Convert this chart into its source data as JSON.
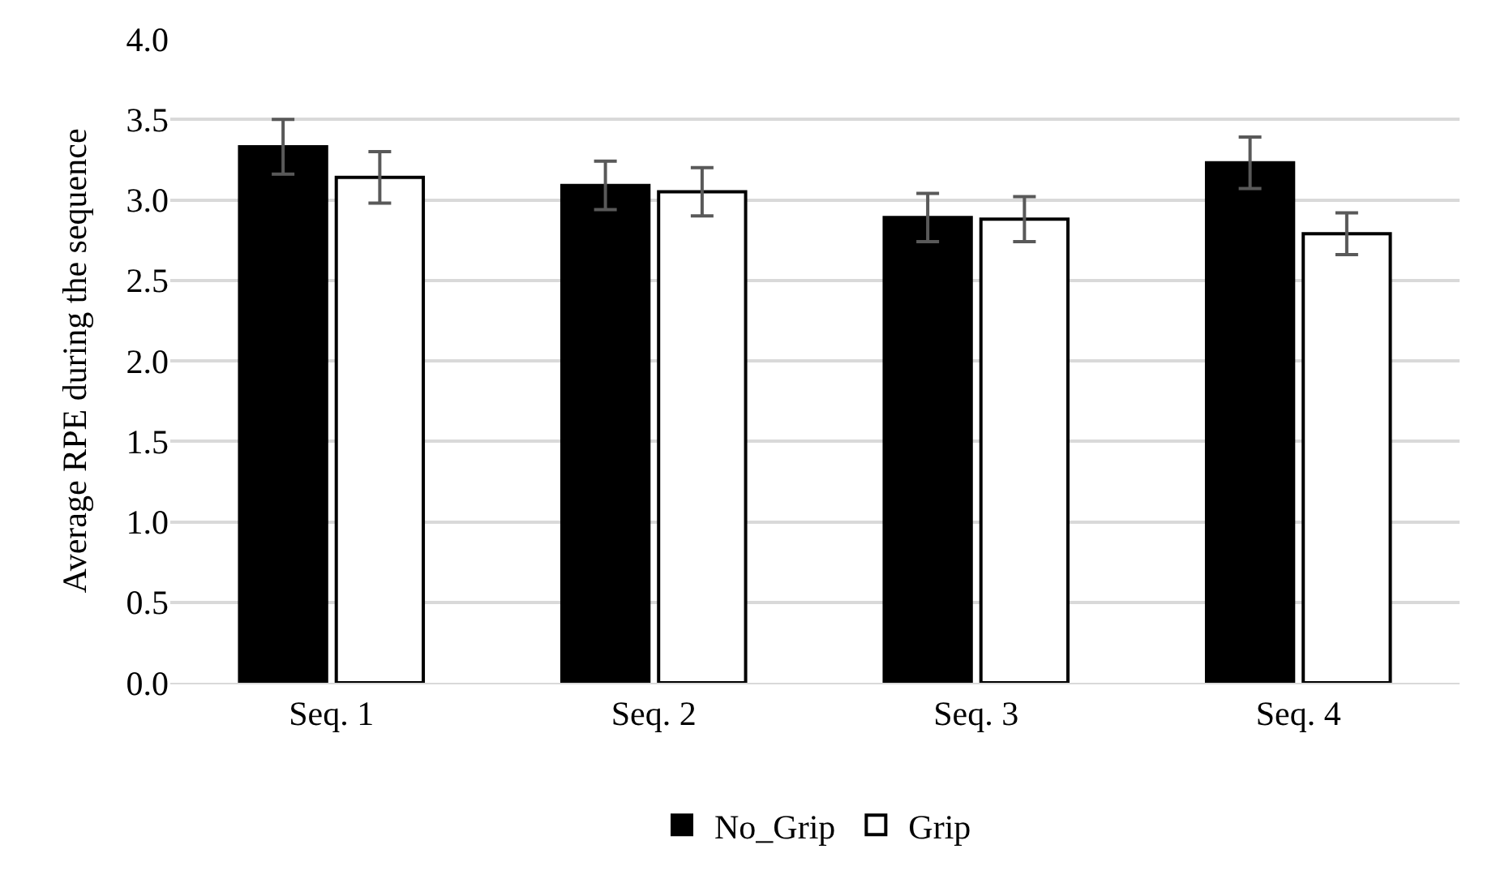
{
  "chart_data": {
    "type": "bar",
    "ylabel": "Average RPE during the sequence",
    "categories": [
      "Seq. 1",
      "Seq. 2",
      "Seq. 3",
      "Seq. 4"
    ],
    "series": [
      {
        "name": "No_Grip",
        "color": "#000000",
        "values": [
          3.33,
          3.09,
          2.89,
          3.23
        ],
        "errors": [
          0.17,
          0.15,
          0.15,
          0.16
        ]
      },
      {
        "name": "Grip",
        "color": "#ffffff",
        "values": [
          3.14,
          3.05,
          2.88,
          2.79
        ],
        "errors": [
          0.16,
          0.15,
          0.14,
          0.13
        ]
      }
    ],
    "ylim": [
      0,
      4
    ],
    "yticks": [
      {
        "value": 0,
        "label": "0.0"
      },
      {
        "value": 0.5,
        "label": "0.5"
      },
      {
        "value": 1,
        "label": "1.0"
      },
      {
        "value": 1.5,
        "label": "1.5"
      },
      {
        "value": 2,
        "label": "2.0"
      },
      {
        "value": 2.5,
        "label": "2.5"
      },
      {
        "value": 3,
        "label": "3.0"
      },
      {
        "value": 3.5,
        "label": "3.5"
      },
      {
        "value": 4,
        "label": "4.0"
      }
    ],
    "grid": "y",
    "legend": "bottom"
  }
}
